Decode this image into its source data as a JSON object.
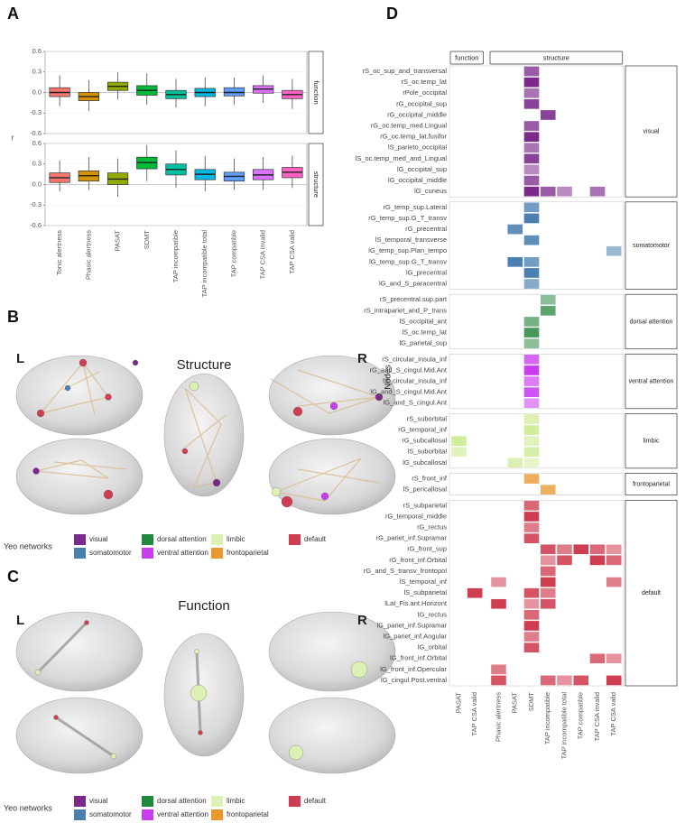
{
  "panel_labels": [
    "A",
    "B",
    "C",
    "D"
  ],
  "brain_panels": [
    {
      "title": "Structure",
      "left": "L",
      "right": "R"
    },
    {
      "title": "Function",
      "left": "L",
      "right": "R"
    }
  ],
  "legend": {
    "title": "Yeo networks",
    "entries": [
      {
        "name": "visual",
        "color": "#7b2a8c"
      },
      {
        "name": "somatomotor",
        "color": "#4a7fb0"
      },
      {
        "name": "dorsal attention",
        "color": "#1f8a3a"
      },
      {
        "name": "ventral attention",
        "color": "#c93cf0"
      },
      {
        "name": "limbic",
        "color": "#dcf0b4"
      },
      {
        "name": "frontoparietal",
        "color": "#e8982e"
      },
      {
        "name": "default",
        "color": "#cf3d50"
      }
    ]
  },
  "chart_data": [
    {
      "type": "box",
      "ylabel": "r",
      "categories": [
        "Tonic alertness",
        "Phasic alertness",
        "PASAT",
        "SDMT",
        "TAP incompatible",
        "TAP incompatible total",
        "TAP compatible",
        "TAP CSA invalid",
        "TAP CSA valid"
      ],
      "colors": [
        "#f8766d",
        "#d39200",
        "#93aa00",
        "#00ba38",
        "#00c19f",
        "#00b9e3",
        "#619cff",
        "#db72fb",
        "#ff61c3"
      ],
      "ylim": [
        -0.6,
        0.6
      ],
      "yticks": [
        -0.6,
        -0.3,
        {
          "value": 0,
          "label": "0.0"
        },
        0.3,
        0.6
      ],
      "grid": true,
      "series": [
        {
          "name": "function",
          "whisker_low": [
            -0.2,
            -0.27,
            -0.1,
            -0.18,
            -0.22,
            -0.2,
            -0.18,
            -0.15,
            -0.24
          ],
          "q1": [
            -0.06,
            -0.12,
            0.03,
            -0.04,
            -0.09,
            -0.06,
            -0.05,
            -0.01,
            -0.09
          ],
          "median": [
            0.0,
            -0.06,
            0.09,
            0.03,
            -0.03,
            0.0,
            0.0,
            0.05,
            -0.03
          ],
          "q3": [
            0.07,
            0.0,
            0.15,
            0.1,
            0.03,
            0.06,
            0.07,
            0.1,
            0.03
          ],
          "whisker_high": [
            0.25,
            0.18,
            0.3,
            0.28,
            0.2,
            0.22,
            0.22,
            0.25,
            0.2
          ]
        },
        {
          "name": "structure",
          "whisker_low": [
            -0.1,
            -0.08,
            -0.18,
            0.05,
            -0.05,
            -0.1,
            -0.08,
            -0.08,
            -0.05
          ],
          "q1": [
            0.03,
            0.05,
            0.0,
            0.23,
            0.14,
            0.07,
            0.05,
            0.07,
            0.1
          ],
          "median": [
            0.1,
            0.13,
            0.08,
            0.32,
            0.22,
            0.15,
            0.12,
            0.14,
            0.18
          ],
          "q3": [
            0.17,
            0.2,
            0.17,
            0.4,
            0.3,
            0.22,
            0.18,
            0.22,
            0.25
          ],
          "whisker_high": [
            0.35,
            0.4,
            0.38,
            0.58,
            0.5,
            0.42,
            0.38,
            0.4,
            0.42
          ]
        }
      ]
    },
    {
      "type": "heatmap",
      "ylabel": "Nodes",
      "column_groups": [
        {
          "name": "function",
          "columns": [
            "PASAT",
            "TAP CSA valid"
          ]
        },
        {
          "name": "structure",
          "columns": [
            "Phasic alertness",
            "PASAT",
            "SDMT",
            "TAP incompatible",
            "TAP incompatible total",
            "TAP compatible",
            "TAP CSA invalid",
            "TAP CSA valid"
          ]
        }
      ],
      "row_groups": [
        {
          "name": "visual",
          "color": "#7b2a8c",
          "rows": [
            {
              "label": "rS_oc_sup_and_transversal",
              "cells": [
                4
              ]
            },
            {
              "label": "rS_oc.temp_lat",
              "cells": [
                4
              ]
            },
            {
              "label": "rPole_occipital",
              "cells": [
                4
              ]
            },
            {
              "label": "rG_occipital_sup",
              "cells": [
                4
              ]
            },
            {
              "label": "rG_occipital_middle",
              "cells": [
                5
              ]
            },
            {
              "label": "rG_oc.temp_med.Lingual",
              "cells": [
                4
              ]
            },
            {
              "label": "rG_oc.temp_lat.fusifor",
              "cells": [
                4
              ]
            },
            {
              "label": "lS_parieto_occipital",
              "cells": [
                4
              ]
            },
            {
              "label": "lS_oc.temp_med_and_Lingual",
              "cells": [
                4
              ]
            },
            {
              "label": "lG_occipital_sup",
              "cells": [
                4
              ]
            },
            {
              "label": "lG_occipital_middle",
              "cells": [
                4
              ]
            },
            {
              "label": "lG_cuneus",
              "cells": [
                4,
                5,
                6,
                8
              ]
            }
          ]
        },
        {
          "name": "somatomotor",
          "color": "#4a7fb0",
          "rows": [
            {
              "label": "rG_temp_sup.Lateral",
              "cells": [
                4
              ]
            },
            {
              "label": "rG_temp_sup.G_T_transv",
              "cells": [
                4
              ]
            },
            {
              "label": "rG_precentral",
              "cells": [
                3
              ]
            },
            {
              "label": "lS_temporal_transverse",
              "cells": [
                4
              ]
            },
            {
              "label": "lG_temp_sup.Plan_tempo",
              "cells": [
                9
              ]
            },
            {
              "label": "lG_temp_sup.G_T_transv",
              "cells": [
                3,
                4
              ]
            },
            {
              "label": "lG_precentral",
              "cells": [
                4
              ]
            },
            {
              "label": "lG_and_S_paracentral",
              "cells": [
                4
              ]
            }
          ]
        },
        {
          "name": "dorsal attention",
          "color": "#2e8b45",
          "rows": [
            {
              "label": "rS_precentral.sup.part",
              "cells": [
                5
              ]
            },
            {
              "label": "rS_intrapariet_and_P_trans",
              "cells": [
                5
              ]
            },
            {
              "label": "lS_occipital_ant",
              "cells": [
                4
              ]
            },
            {
              "label": "lS_oc.temp_lat",
              "cells": [
                4
              ]
            },
            {
              "label": "lG_parietal_sup",
              "cells": [
                4
              ]
            }
          ]
        },
        {
          "name": "ventral attention",
          "color": "#c93cf0",
          "rows": [
            {
              "label": "rS_circular_insula_inf",
              "cells": [
                4
              ]
            },
            {
              "label": "rG_and_S_cingul.Mid.Ant",
              "cells": [
                4
              ]
            },
            {
              "label": "lS_circular_insula_inf",
              "cells": [
                4
              ]
            },
            {
              "label": "lG_and_S_cingul.Mid.Ant",
              "cells": [
                4
              ]
            },
            {
              "label": "lG_and_S_cingul.Ant",
              "cells": [
                4
              ]
            }
          ]
        },
        {
          "name": "limbic",
          "color": "#d2ec9e",
          "rows": [
            {
              "label": "rS_suborbital",
              "cells": [
                4
              ]
            },
            {
              "label": "rG_temporal_inf",
              "cells": [
                4
              ]
            },
            {
              "label": "rG_subcallosal",
              "cells": [
                0,
                4
              ]
            },
            {
              "label": "lS_suborbital",
              "cells": [
                0,
                4
              ]
            },
            {
              "label": "lG_subcallosal",
              "cells": [
                3,
                4
              ]
            }
          ]
        },
        {
          "name": "frontoparietal",
          "color": "#e8982e",
          "rows": [
            {
              "label": "rS_front_inf",
              "cells": [
                4
              ]
            },
            {
              "label": "lS_pericallosal",
              "cells": [
                5
              ]
            }
          ]
        },
        {
          "name": "default",
          "color": "#cf3d50",
          "rows": [
            {
              "label": "rS_subparietal",
              "cells": [
                4
              ]
            },
            {
              "label": "rG_temporal_middle",
              "cells": [
                4
              ]
            },
            {
              "label": "rG_rectus",
              "cells": [
                4
              ]
            },
            {
              "label": "rG_pariet_inf.Supramar",
              "cells": [
                4
              ]
            },
            {
              "label": "rG_front_sup",
              "cells": [
                5,
                6,
                7,
                8,
                9
              ]
            },
            {
              "label": "rG_front_inf.Orbital",
              "cells": [
                5,
                6,
                8,
                9
              ]
            },
            {
              "label": "rG_and_S_transv_frontopol",
              "cells": [
                5
              ]
            },
            {
              "label": "lS_temporal_inf",
              "cells": [
                2,
                5,
                9
              ]
            },
            {
              "label": "lS_subparietal",
              "cells": [
                1,
                4,
                5
              ]
            },
            {
              "label": "lLat_Fis.ant.Horizont",
              "cells": [
                2,
                4,
                5
              ]
            },
            {
              "label": "lG_rectus",
              "cells": [
                4
              ]
            },
            {
              "label": "lG_pariet_inf.Supramar",
              "cells": [
                4
              ]
            },
            {
              "label": "lG_pariet_inf.Angular",
              "cells": [
                4
              ]
            },
            {
              "label": "lG_orbital",
              "cells": [
                4
              ]
            },
            {
              "label": "lG_front_inf.Orbital",
              "cells": [
                8,
                9
              ]
            },
            {
              "label": "lG_front_inf.Opercular",
              "cells": [
                2
              ]
            },
            {
              "label": "lG_cingul.Post.ventral",
              "cells": [
                2,
                5,
                6,
                7,
                9
              ]
            }
          ]
        }
      ]
    }
  ]
}
